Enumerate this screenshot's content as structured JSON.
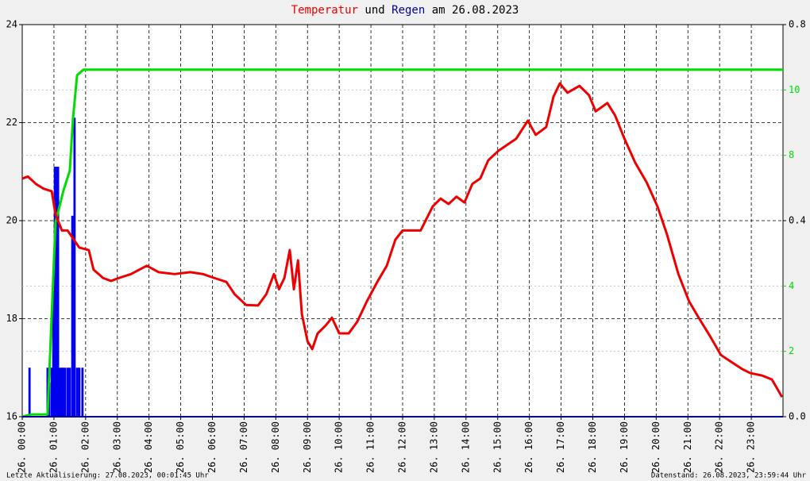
{
  "chart_data": {
    "type": "line",
    "title": [
      "und",
      "am 26.08.2023"
    ],
    "footer_left": "Letzte Aktualisierung: 27.08.2023, 00:01:45 Uhr",
    "footer_right": "Datenstand: 26.08.2023, 23:59:44 Uhr",
    "xlim": [
      0,
      24
    ],
    "xticks": [
      {
        "value": 0,
        "label": "26. 00:00"
      },
      {
        "value": 1,
        "label": "26. 01:00"
      },
      {
        "value": 2,
        "label": "26. 02:00"
      },
      {
        "value": 3,
        "label": "26. 03:00"
      },
      {
        "value": 4,
        "label": "26. 04:00"
      },
      {
        "value": 5,
        "label": "26. 05:00"
      },
      {
        "value": 6,
        "label": "26. 06:00"
      },
      {
        "value": 7,
        "label": "26. 07:00"
      },
      {
        "value": 8,
        "label": "26. 08:00"
      },
      {
        "value": 9,
        "label": "26. 09:00"
      },
      {
        "value": 10,
        "label": "26. 10:00"
      },
      {
        "value": 11,
        "label": "26. 11:00"
      },
      {
        "value": 12,
        "label": "26. 12:00"
      },
      {
        "value": 13,
        "label": "26. 13:00"
      },
      {
        "value": 14,
        "label": "26. 14:00"
      },
      {
        "value": 15,
        "label": "26. 15:00"
      },
      {
        "value": 16,
        "label": "26. 16:00"
      },
      {
        "value": 17,
        "label": "26. 17:00"
      },
      {
        "value": 18,
        "label": "26. 18:00"
      },
      {
        "value": 19,
        "label": "26. 19:00"
      },
      {
        "value": 20,
        "label": "26. 20:00"
      },
      {
        "value": 21,
        "label": "26. 21:00"
      },
      {
        "value": 22,
        "label": "26. 22:00"
      },
      {
        "value": 23,
        "label": "26. 23:00"
      }
    ],
    "ylim": [
      16,
      24
    ],
    "yticks": [
      16,
      18,
      20,
      22,
      24
    ],
    "y2lim": [
      0,
      0.8
    ],
    "y2ticks": [
      {
        "value": 0,
        "label": "0.0"
      },
      0.4,
      0.8
    ],
    "y3lim": [
      0,
      12
    ],
    "y3ticks": [
      2,
      4,
      8,
      10
    ],
    "y3color": "#00dd00",
    "grid": true,
    "series": [
      {
        "name": "Temperatur",
        "type": "line",
        "color": "#ee0000",
        "x": [
          0,
          0.18,
          0.43,
          0.68,
          0.93,
          1.05,
          1.25,
          1.43,
          1.6,
          1.8,
          2.1,
          2.25,
          2.55,
          2.8,
          3.05,
          3.43,
          3.93,
          4.3,
          4.8,
          5.3,
          5.7,
          6.06,
          6.44,
          6.7,
          7.06,
          7.44,
          7.7,
          7.94,
          8.1,
          8.27,
          8.44,
          8.57,
          8.7,
          8.82,
          9.0,
          9.15,
          9.32,
          9.57,
          9.77,
          10.0,
          10.3,
          10.57,
          10.87,
          11.2,
          11.5,
          11.77,
          12.0,
          12.32,
          12.57,
          12.95,
          13.2,
          13.45,
          13.7,
          13.95,
          14.2,
          14.45,
          14.7,
          15.03,
          15.33,
          15.58,
          15.95,
          16.2,
          16.53,
          16.76,
          16.96,
          17.2,
          17.58,
          17.88,
          18.09,
          18.46,
          18.7,
          19.0,
          19.34,
          19.7,
          20.04,
          20.34,
          20.7,
          21.04,
          21.34,
          21.72,
          22.04,
          22.34,
          22.72,
          22.97,
          23.34,
          23.65,
          23.97
        ],
        "values": [
          20.86,
          20.9,
          20.75,
          20.65,
          20.6,
          20.13,
          19.8,
          19.8,
          19.64,
          19.45,
          19.4,
          19.0,
          18.83,
          18.77,
          18.83,
          18.91,
          19.08,
          18.95,
          18.91,
          18.95,
          18.91,
          18.83,
          18.75,
          18.5,
          18.28,
          18.27,
          18.5,
          18.91,
          18.6,
          18.83,
          19.4,
          18.6,
          19.19,
          18.1,
          17.54,
          17.38,
          17.7,
          17.86,
          18.02,
          17.7,
          17.7,
          17.94,
          18.35,
          18.75,
          19.08,
          19.61,
          19.8,
          19.8,
          19.8,
          20.29,
          20.45,
          20.34,
          20.49,
          20.37,
          20.75,
          20.86,
          21.23,
          21.43,
          21.56,
          21.67,
          22.04,
          21.75,
          21.91,
          22.53,
          22.8,
          22.61,
          22.75,
          22.56,
          22.23,
          22.4,
          22.15,
          21.67,
          21.18,
          20.78,
          20.29,
          19.72,
          18.91,
          18.35,
          18.02,
          17.62,
          17.26,
          17.13,
          16.97,
          16.89,
          16.84,
          16.76,
          16.4
        ]
      },
      {
        "name": "Regen",
        "type": "bar",
        "axis": "y2",
        "color": "#0000ee",
        "x": [
          0.23,
          0.8,
          0.85,
          0.93,
          0.98,
          1.03,
          1.08,
          1.13,
          1.18,
          1.25,
          1.3,
          1.35,
          1.43,
          1.5,
          1.58,
          1.65,
          1.73,
          1.8,
          1.9
        ],
        "values": [
          0.1,
          0.1,
          0.07,
          0.1,
          0.25,
          0.51,
          0.51,
          0.51,
          0.1,
          0.1,
          0.1,
          0.1,
          0.1,
          0.1,
          0.41,
          0.61,
          0.1,
          0.1,
          0.1
        ]
      },
      {
        "type": "line",
        "axis": "y3",
        "color": "#00dd00",
        "x": [
          0,
          0.3,
          0.8,
          1.05,
          1.3,
          1.5,
          1.6,
          1.73,
          1.93,
          24
        ],
        "values": [
          0,
          0.07,
          0.07,
          5.95,
          6.92,
          7.53,
          9.11,
          10.45,
          10.62,
          10.62
        ]
      }
    ]
  }
}
